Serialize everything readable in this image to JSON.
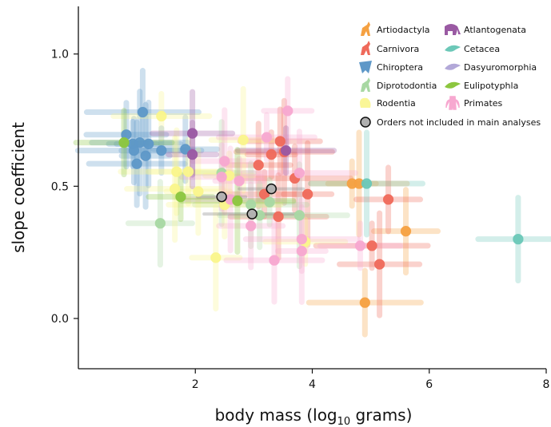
{
  "chart_data": {
    "type": "scatter",
    "xlabel_prefix": "body mass (log",
    "xlabel_sub": "10",
    "xlabel_suffix": " grams)",
    "ylabel": "slope coefficient",
    "xlim": [
      0,
      8
    ],
    "ylim": [
      -0.19,
      1.18
    ],
    "x_ticks": [
      {
        "value": 2,
        "label": "2"
      },
      {
        "value": 4,
        "label": "4"
      },
      {
        "value": 6,
        "label": "6"
      },
      {
        "value": 8,
        "label": "8"
      }
    ],
    "y_ticks": [
      {
        "value": 0.0,
        "label": "0.0"
      },
      {
        "value": 0.5,
        "label": "0.5"
      },
      {
        "value": 1.0,
        "label": "1.0"
      }
    ],
    "grid": false,
    "legend_position": "top-right",
    "series": [
      {
        "name": "Artiodactyla",
        "color": "#f5a142",
        "icon": "deer-icon",
        "points": [
          [
            4.68,
            0.51
          ],
          [
            4.8,
            0.51
          ],
          [
            5.6,
            0.33
          ],
          [
            4.9,
            0.06
          ]
        ]
      },
      {
        "name": "Carnivora",
        "color": "#ef6a5b",
        "icon": "sea-lion-icon",
        "points": [
          [
            3.45,
            0.67
          ],
          [
            3.3,
            0.62
          ],
          [
            3.52,
            0.63
          ],
          [
            3.08,
            0.58
          ],
          [
            3.7,
            0.53
          ],
          [
            3.18,
            0.47
          ],
          [
            3.92,
            0.47
          ],
          [
            3.42,
            0.385
          ],
          [
            5.3,
            0.45
          ],
          [
            5.02,
            0.275
          ],
          [
            5.15,
            0.205
          ]
        ]
      },
      {
        "name": "Chiroptera",
        "color": "#5e98c8",
        "icon": "bat-icon",
        "points": [
          [
            1.1,
            0.78
          ],
          [
            0.82,
            0.695
          ],
          [
            0.93,
            0.66
          ],
          [
            1.05,
            0.665
          ],
          [
            1.2,
            0.66
          ],
          [
            0.95,
            0.635
          ],
          [
            1.42,
            0.635
          ],
          [
            1.15,
            0.615
          ],
          [
            1.0,
            0.585
          ],
          [
            1.83,
            0.64
          ]
        ]
      },
      {
        "name": "Diprotodontia",
        "color": "#a8d8a3",
        "icon": "kangaroo-icon",
        "points": [
          [
            2.45,
            0.55
          ],
          [
            2.95,
            0.43
          ],
          [
            3.1,
            0.39
          ],
          [
            3.27,
            0.44
          ],
          [
            3.78,
            0.39
          ],
          [
            1.4,
            0.36
          ]
        ]
      },
      {
        "name": "Rodentia",
        "color": "#faf58c",
        "icon": "squirrel-icon",
        "points": [
          [
            1.42,
            0.765
          ],
          [
            2.82,
            0.675
          ],
          [
            1.68,
            0.555
          ],
          [
            1.88,
            0.555
          ],
          [
            2.58,
            0.54
          ],
          [
            1.65,
            0.49
          ],
          [
            2.05,
            0.48
          ],
          [
            2.5,
            0.43
          ],
          [
            3.88,
            0.29
          ],
          [
            2.35,
            0.23
          ]
        ]
      },
      {
        "name": "Primates",
        "color": "#f7a8d0",
        "icon": "primate-icon",
        "points": [
          [
            3.58,
            0.785
          ],
          [
            3.22,
            0.685
          ],
          [
            2.5,
            0.595
          ],
          [
            3.78,
            0.55
          ],
          [
            2.45,
            0.535
          ],
          [
            2.75,
            0.52
          ],
          [
            2.6,
            0.45
          ],
          [
            2.95,
            0.35
          ],
          [
            3.82,
            0.3
          ],
          [
            4.82,
            0.275
          ],
          [
            3.82,
            0.255
          ],
          [
            3.35,
            0.22
          ]
        ]
      },
      {
        "name": "Atlantogenata",
        "color": "#9a5aa3",
        "icon": "elephant-icon",
        "points": [
          [
            1.95,
            0.7
          ],
          [
            1.95,
            0.62
          ],
          [
            3.55,
            0.635
          ]
        ]
      },
      {
        "name": "Cetacea",
        "color": "#6cc8b8",
        "icon": "dolphin-icon",
        "points": [
          [
            4.93,
            0.51
          ],
          [
            7.52,
            0.3
          ]
        ]
      },
      {
        "name": "Dasyuromorphia",
        "color": "#b2a8d8",
        "icon": "quoll-icon",
        "points": []
      },
      {
        "name": "Eulipotyphla",
        "color": "#8cc63f",
        "icon": "shrew-icon",
        "points": [
          [
            0.78,
            0.665
          ],
          [
            1.75,
            0.46
          ],
          [
            2.72,
            0.445
          ]
        ]
      },
      {
        "name": "Orders not included in main analyses",
        "color": "#b0b0b0",
        "icon": "circle-icon",
        "points": [
          [
            2.45,
            0.46
          ],
          [
            2.97,
            0.395
          ],
          [
            3.3,
            0.49
          ]
        ]
      }
    ]
  }
}
